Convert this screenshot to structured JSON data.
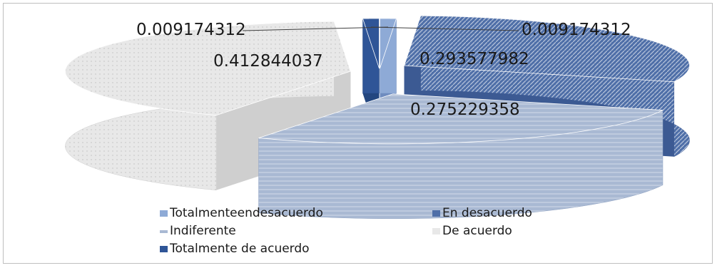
{
  "chart_data": {
    "type": "pie",
    "title": "",
    "categories": [
      "Totalmenteendesacuerdo",
      "En desacuerdo",
      "Indiferente",
      "De acuerdo",
      "Totalmente de acuerdo"
    ],
    "values": [
      0.009174312,
      0.293577982,
      0.275229358,
      0.412844037,
      0.009174312
    ],
    "data_labels": [
      "0.009174312",
      "0.293577982",
      "0.275229358",
      "0.412844037",
      "0.009174312"
    ],
    "colors": [
      "#8eaad6",
      "#4f6fa8",
      "#a9b9d3",
      "#e8e8e8",
      "#2f5597"
    ],
    "legend_position": "bottom",
    "grid": false
  }
}
